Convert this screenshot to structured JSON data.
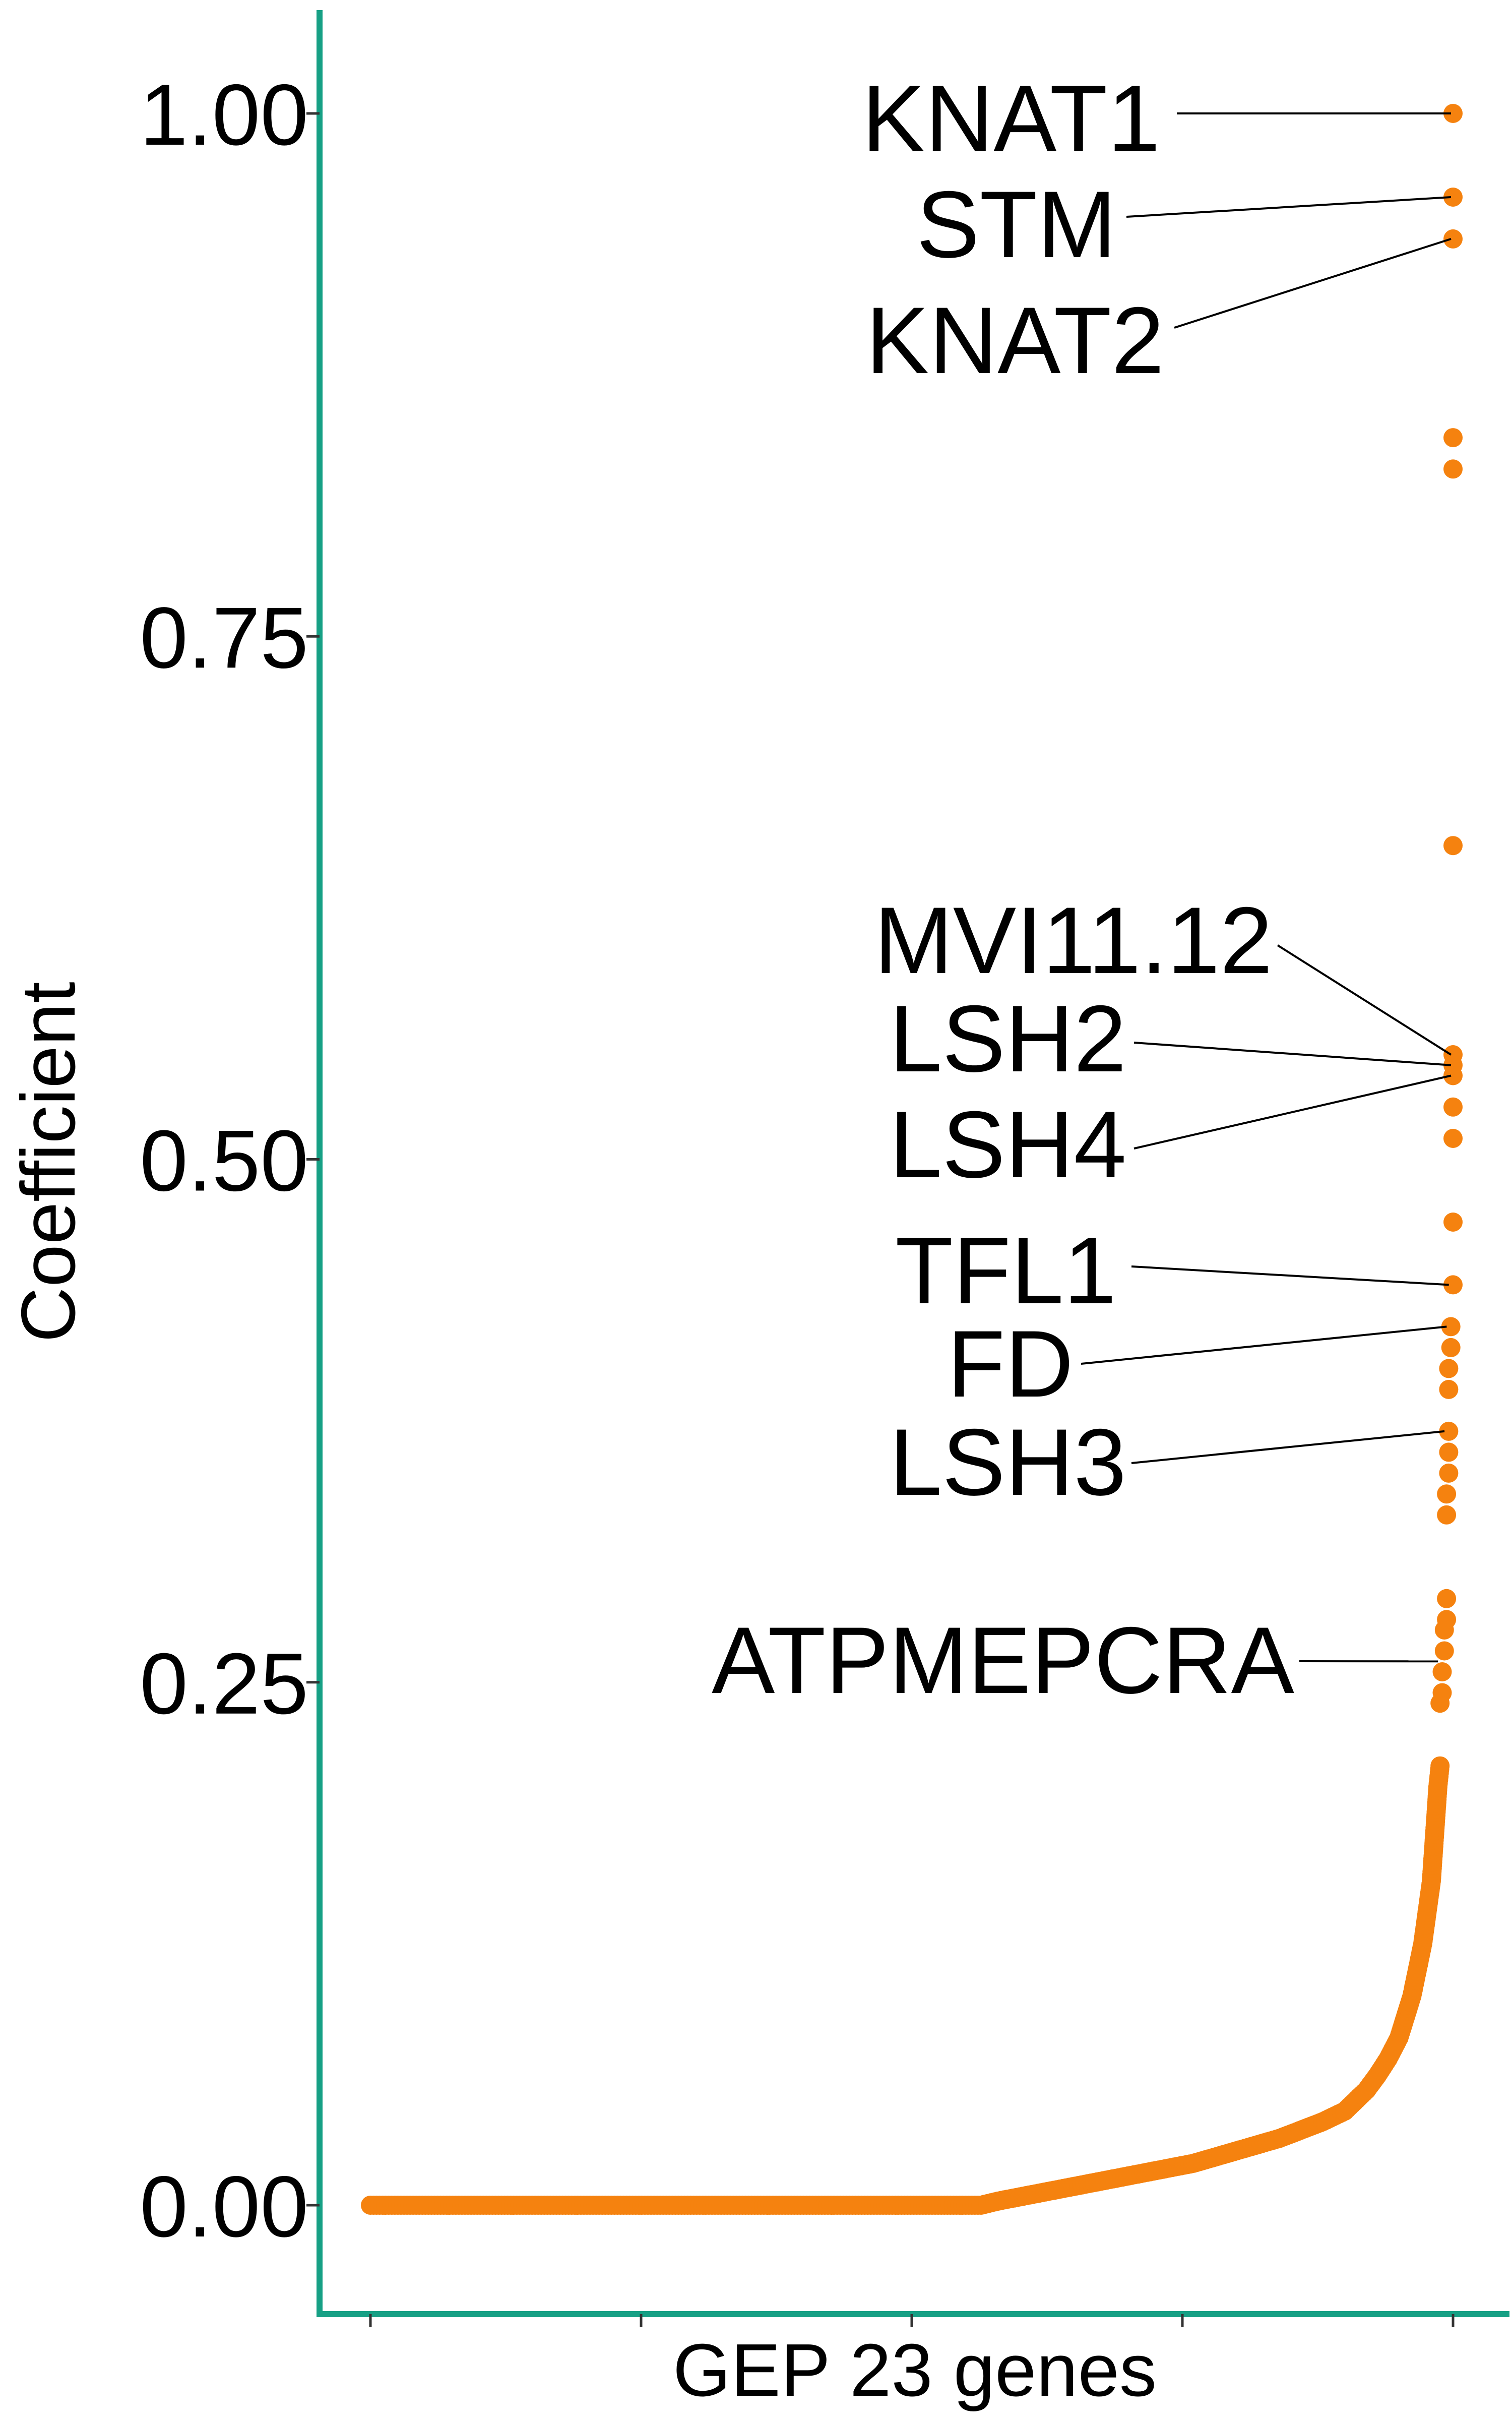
{
  "chart_data": {
    "type": "scatter",
    "title": "",
    "xlabel": "GEP 23 genes",
    "ylabel": "Coefficient",
    "ylim": [
      -0.05,
      1.05
    ],
    "yticks": [
      0.0,
      0.25,
      0.5,
      0.75,
      1.0
    ],
    "ytick_labels": [
      "0.00",
      "0.25",
      "0.50",
      "0.75",
      "1.00"
    ],
    "grid": false,
    "legend": "none",
    "colors": {
      "points": "#F5820F",
      "axis_line": "#17A085",
      "label_text": "#000000",
      "leader_line": "#000000"
    },
    "annotations": [
      {
        "label": "KNAT1",
        "rank": 500,
        "value": 1.0
      },
      {
        "label": "STM",
        "rank": 500,
        "value": 0.96
      },
      {
        "label": "KNAT2",
        "rank": 500,
        "value": 0.94
      },
      {
        "label": "MVI11.12",
        "rank": 500,
        "value": 0.55
      },
      {
        "label": "LSH2",
        "rank": 500,
        "value": 0.545
      },
      {
        "label": "LSH4",
        "rank": 500,
        "value": 0.54
      },
      {
        "label": "TFL1",
        "rank": 499,
        "value": 0.44
      },
      {
        "label": "FD",
        "rank": 498,
        "value": 0.42
      },
      {
        "label": "LSH3",
        "rank": 497,
        "value": 0.37
      },
      {
        "label": "ATPMEPCRA",
        "rank": 494,
        "value": 0.26
      }
    ],
    "series": [
      {
        "points": [
          [
            0,
            0.0
          ],
          [
            100,
            0.0
          ],
          [
            200,
            0.0
          ],
          [
            282,
            0.0
          ],
          [
            290,
            0.002
          ],
          [
            300,
            0.004
          ],
          [
            320,
            0.008
          ],
          [
            340,
            0.012
          ],
          [
            360,
            0.016
          ],
          [
            380,
            0.02
          ],
          [
            400,
            0.026
          ],
          [
            420,
            0.032
          ],
          [
            440,
            0.04
          ],
          [
            450,
            0.045
          ],
          [
            460,
            0.055
          ],
          [
            465,
            0.062
          ],
          [
            470,
            0.07
          ],
          [
            475,
            0.08
          ],
          [
            478,
            0.09
          ],
          [
            481,
            0.1
          ],
          [
            484,
            0.115
          ],
          [
            486,
            0.125
          ],
          [
            488,
            0.14
          ],
          [
            490,
            0.155
          ],
          [
            491,
            0.17
          ],
          [
            492,
            0.185
          ],
          [
            493,
            0.2
          ],
          [
            494,
            0.21
          ],
          [
            494,
            0.24
          ],
          [
            495,
            0.245
          ],
          [
            495,
            0.255
          ],
          [
            496,
            0.265
          ],
          [
            496,
            0.275
          ],
          [
            497,
            0.28
          ],
          [
            497,
            0.29
          ],
          [
            497,
            0.33
          ],
          [
            497,
            0.34
          ],
          [
            498,
            0.35
          ],
          [
            498,
            0.36
          ],
          [
            498,
            0.37
          ],
          [
            498,
            0.39
          ],
          [
            498,
            0.4
          ],
          [
            499,
            0.41
          ],
          [
            499,
            0.42
          ],
          [
            500,
            0.44
          ],
          [
            500,
            0.47
          ],
          [
            500,
            0.51
          ],
          [
            500,
            0.525
          ],
          [
            500,
            0.54
          ],
          [
            500,
            0.545
          ],
          [
            500,
            0.55
          ],
          [
            500,
            0.65
          ],
          [
            500,
            0.83
          ],
          [
            500,
            0.845
          ],
          [
            500,
            0.94
          ],
          [
            500,
            0.96
          ],
          [
            500,
            1.0
          ]
        ]
      }
    ]
  }
}
